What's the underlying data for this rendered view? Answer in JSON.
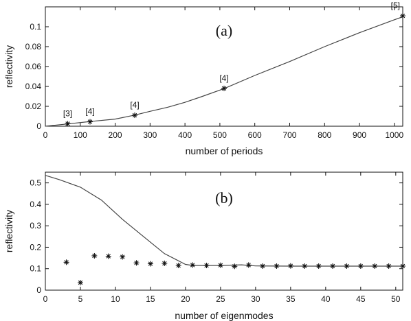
{
  "chart_data": [
    {
      "type": "line",
      "panel_label": "(a)",
      "xlabel": "number of periods",
      "ylabel": "reflectivity",
      "xlim": [
        0,
        1024
      ],
      "ylim": [
        0,
        0.12
      ],
      "xticks": [
        0,
        100,
        200,
        300,
        400,
        500,
        600,
        700,
        800,
        900,
        1000
      ],
      "yticks": [
        0,
        0.02,
        0.04,
        0.06,
        0.08,
        0.1
      ],
      "ytick_labels": [
        "0",
        "0.02",
        "0.04",
        "0.06",
        "0.08",
        "0.1"
      ],
      "series": [
        {
          "style": "line",
          "x": [
            0,
            64,
            128,
            200,
            256,
            300,
            350,
            400,
            450,
            512,
            600,
            700,
            800,
            900,
            1000,
            1024
          ],
          "y": [
            0,
            0.0023,
            0.0047,
            0.0072,
            0.0112,
            0.015,
            0.019,
            0.024,
            0.03,
            0.0378,
            0.051,
            0.065,
            0.08,
            0.094,
            0.107,
            0.11
          ]
        },
        {
          "style": "markers",
          "x": [
            64,
            128,
            256,
            512,
            1024
          ],
          "y": [
            0.0025,
            0.0045,
            0.011,
            0.038,
            0.111
          ]
        }
      ],
      "annotations": [
        {
          "text": "[3]",
          "x": 64,
          "y": 0.0025
        },
        {
          "text": "[4]",
          "x": 128,
          "y": 0.0045
        },
        {
          "text": "[4]",
          "x": 256,
          "y": 0.011
        },
        {
          "text": "[4]",
          "x": 512,
          "y": 0.038
        },
        {
          "text": "[5]",
          "x": 1024,
          "y": 0.111
        }
      ]
    },
    {
      "type": "line",
      "panel_label": "(b)",
      "xlabel": "number of eigenmodes",
      "ylabel": "reflectivity",
      "xlim": [
        0,
        51
      ],
      "ylim": [
        0,
        0.55
      ],
      "xticks": [
        0,
        5,
        10,
        15,
        20,
        25,
        30,
        35,
        40,
        45,
        50
      ],
      "yticks": [
        0,
        0.1,
        0.2,
        0.3,
        0.4,
        0.5
      ],
      "ytick_labels": [
        "0",
        "0.1",
        "0.2",
        "0.3",
        "0.4",
        "0.5"
      ],
      "series": [
        {
          "style": "line",
          "x": [
            0,
            2,
            5,
            8,
            11,
            14,
            17,
            20,
            21,
            25,
            28,
            30,
            35,
            40,
            45,
            51
          ],
          "y": [
            0.535,
            0.515,
            0.48,
            0.42,
            0.33,
            0.25,
            0.17,
            0.12,
            0.115,
            0.115,
            0.118,
            0.113,
            0.112,
            0.112,
            0.112,
            0.112
          ]
        },
        {
          "style": "markers",
          "x": [
            3,
            5,
            7,
            9,
            11,
            13,
            15,
            17,
            19,
            21,
            23,
            25,
            27,
            29,
            31,
            33,
            35,
            37,
            39,
            41,
            43,
            45,
            47,
            49,
            51
          ],
          "y": [
            0.13,
            0.035,
            0.16,
            0.158,
            0.155,
            0.127,
            0.123,
            0.125,
            0.115,
            0.117,
            0.115,
            0.116,
            0.111,
            0.117,
            0.112,
            0.112,
            0.113,
            0.112,
            0.112,
            0.112,
            0.112,
            0.112,
            0.112,
            0.112,
            0.112
          ]
        }
      ],
      "annotations": []
    }
  ]
}
